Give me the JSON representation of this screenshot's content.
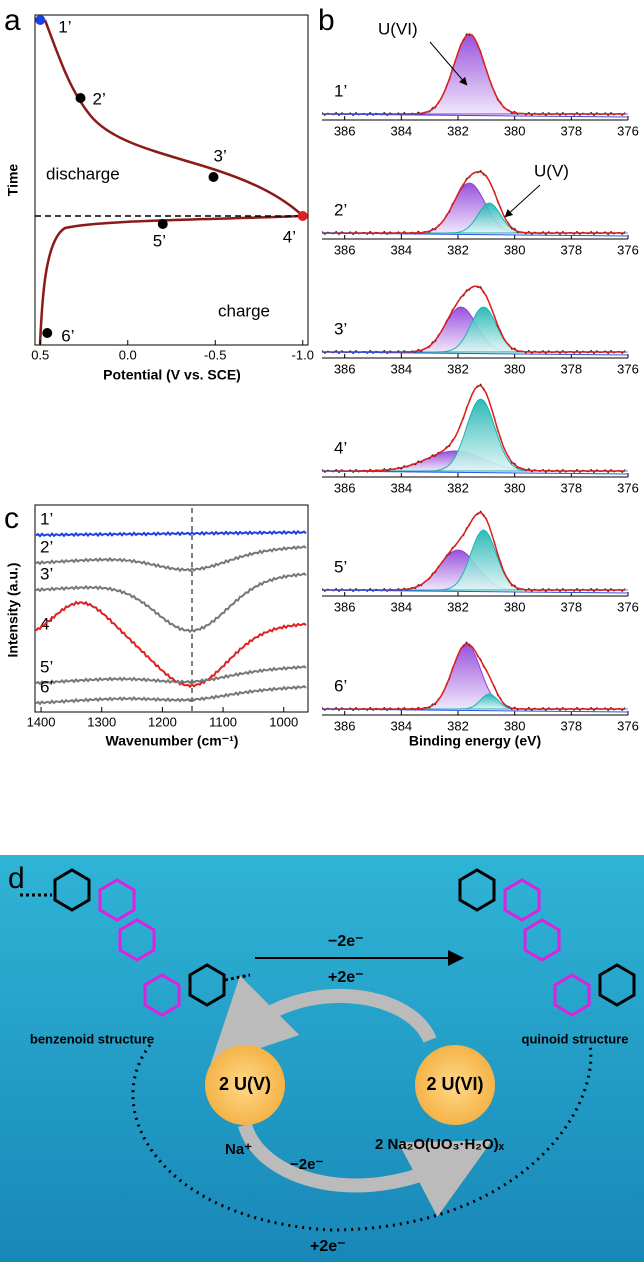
{
  "panel_a": {
    "label": "a",
    "y_label": "Time",
    "x_label": "Potential (V vs. SCE)",
    "xlim": [
      0.53,
      -1.03
    ],
    "xticks": [
      0.5,
      {
        "value": 0,
        "label": "0.0"
      },
      -0.5,
      {
        "value": -1,
        "label": "-1.0"
      }
    ],
    "discharge": "discharge",
    "charge": "charge",
    "points": [
      {
        "label": "1’",
        "x": 0.5
      },
      {
        "label": "2’",
        "x": 0.27
      },
      {
        "label": "3’",
        "x": -0.49
      },
      {
        "label": "4’",
        "x": -1.0
      },
      {
        "label": "5’",
        "x": -0.2
      },
      {
        "label": "6’",
        "x": 0.46
      }
    ]
  },
  "panel_b": {
    "label": "b",
    "x_label": "Binding energy (eV)",
    "xlim": [
      386.8,
      376
    ],
    "xticks": [
      386,
      384,
      382,
      380,
      378,
      376
    ],
    "samples": [
      "1’",
      "2’",
      "3’",
      "4’",
      "5’",
      "6’"
    ],
    "annotation_u6": "U(VI)",
    "annotation_u5": "U(V)"
  },
  "panel_c": {
    "label": "c",
    "y_label": "Intensity (a.u.)",
    "x_label": "Wavenumber (cm⁻¹)",
    "xlim": [
      1410,
      960
    ],
    "xticks": [
      1400,
      1300,
      1200,
      1100,
      1000
    ],
    "samples": [
      "1’",
      "2’",
      "3’",
      "4’",
      "5’",
      "6’"
    ]
  },
  "panel_d": {
    "label": "d",
    "left_structure": "benzenoid structure",
    "right_structure": "quinoid structure",
    "top_arrow": "−2e⁻",
    "top_back": "+2e⁻",
    "left_state": "2 U(V)",
    "right_state": "2 U(VI)",
    "cation": "Na⁺",
    "bottom_arrow": "−2e⁻",
    "product": "2 Na₂O(UO₃·H₂O)ₓ",
    "outer_arrow": "+2e⁻"
  }
}
